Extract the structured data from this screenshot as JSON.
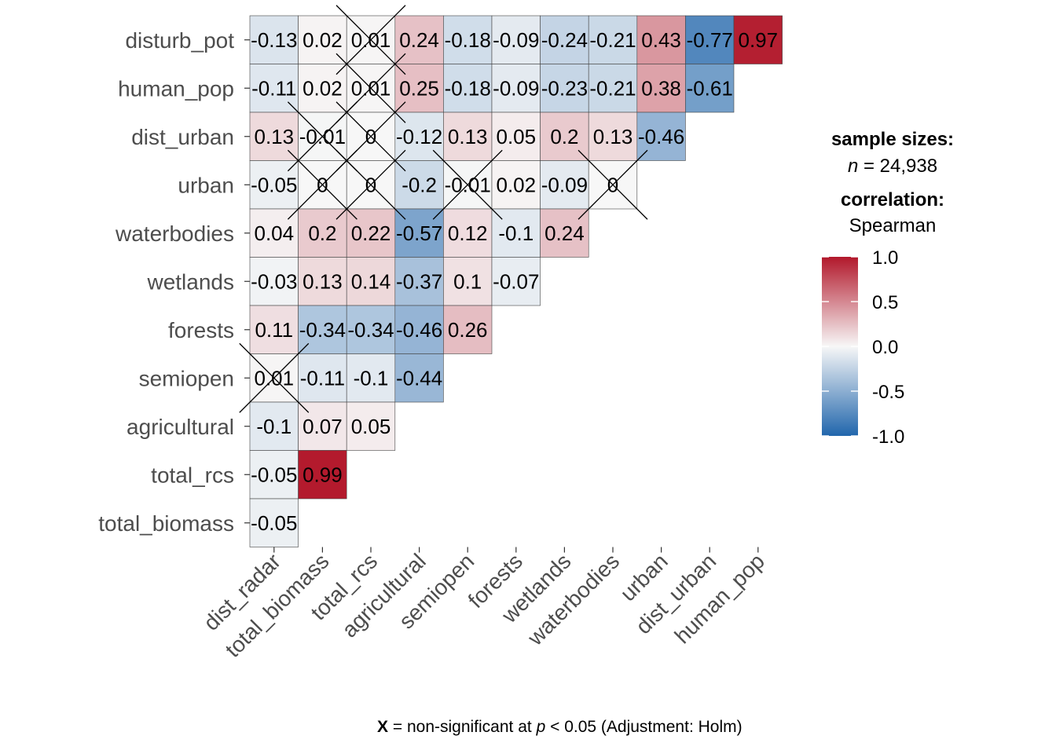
{
  "chart_data": {
    "type": "heatmap",
    "x_labels": [
      "dist_radar",
      "total_biomass",
      "total_rcs",
      "agricultural",
      "semiopen",
      "forests",
      "wetlands",
      "waterbodies",
      "urban",
      "dist_urban",
      "human_pop"
    ],
    "y_labels": [
      "disturb_pot",
      "human_pop",
      "dist_urban",
      "urban",
      "waterbodies",
      "wetlands",
      "forests",
      "semiopen",
      "agricultural",
      "total_rcs",
      "total_biomass"
    ],
    "values": [
      [
        -0.13,
        0.02,
        0.01,
        0.24,
        -0.18,
        -0.09,
        -0.24,
        -0.21,
        0.43,
        -0.77,
        0.97
      ],
      [
        -0.11,
        0.02,
        0.01,
        0.25,
        -0.18,
        -0.09,
        -0.23,
        -0.21,
        0.38,
        -0.61
      ],
      [
        0.13,
        -0.01,
        0,
        -0.12,
        0.13,
        0.05,
        0.2,
        0.13,
        -0.46
      ],
      [
        -0.05,
        0,
        0,
        -0.2,
        -0.01,
        0.02,
        -0.09,
        0
      ],
      [
        0.04,
        0.2,
        0.22,
        -0.57,
        0.12,
        -0.1,
        0.24
      ],
      [
        -0.03,
        0.13,
        0.14,
        -0.37,
        0.1,
        -0.07
      ],
      [
        0.11,
        -0.34,
        -0.34,
        -0.46,
        0.26
      ],
      [
        0.01,
        -0.11,
        -0.1,
        -0.44
      ],
      [
        -0.1,
        0.07,
        0.05
      ],
      [
        -0.05,
        0.99
      ],
      [
        -0.05
      ]
    ],
    "labels": [
      [
        "-0.13",
        "0.02",
        "0.01",
        "0.24",
        "-0.18",
        "-0.09",
        "-0.24",
        "-0.21",
        "0.43",
        "-0.77",
        "0.97"
      ],
      [
        "-0.11",
        "0.02",
        "0.01",
        "0.25",
        "-0.18",
        "-0.09",
        "-0.23",
        "-0.21",
        "0.38",
        "-0.61"
      ],
      [
        "0.13",
        "-0.01",
        "0",
        "-0.12",
        "0.13",
        "0.05",
        "0.2",
        "0.13",
        "-0.46"
      ],
      [
        "-0.05",
        "0",
        "0",
        "-0.2",
        "-0.01",
        "0.02",
        "-0.09",
        "0"
      ],
      [
        "0.04",
        "0.2",
        "0.22",
        "-0.57",
        "0.12",
        "-0.1",
        "0.24"
      ],
      [
        "-0.03",
        "0.13",
        "0.14",
        "-0.37",
        "0.1",
        "-0.07"
      ],
      [
        "0.11",
        "-0.34",
        "-0.34",
        "-0.46",
        "0.26"
      ],
      [
        "0.01",
        "-0.11",
        "-0.1",
        "-0.44"
      ],
      [
        "-0.1",
        "0.07",
        "0.05"
      ],
      [
        "-0.05",
        "0.99"
      ],
      [
        "-0.05"
      ]
    ],
    "non_significant": [
      [
        0,
        2
      ],
      [
        1,
        2
      ],
      [
        2,
        1
      ],
      [
        2,
        2
      ],
      [
        3,
        1
      ],
      [
        3,
        2
      ],
      [
        3,
        4
      ],
      [
        3,
        7
      ],
      [
        7,
        0
      ]
    ],
    "color_scale": {
      "low": "#2166ac",
      "mid": "#f7f7f7",
      "high": "#b2182b",
      "limits": [
        -1,
        1
      ]
    },
    "legend": {
      "sample_title": "sample sizes:",
      "n_prefix": "n",
      "n_value": "= 24,938",
      "corr_title": "correlation:",
      "corr_method": "Spearman",
      "ticks": [
        "1.0",
        "0.5",
        "0.0",
        "-0.5",
        "-1.0"
      ],
      "tick_values": [
        1.0,
        0.5,
        0.0,
        -0.5,
        -1.0
      ]
    },
    "caption": {
      "marker": "X",
      "text1": "= non-significant at",
      "p": "p",
      "text2": "< 0.05 (Adjustment: Holm)"
    }
  }
}
